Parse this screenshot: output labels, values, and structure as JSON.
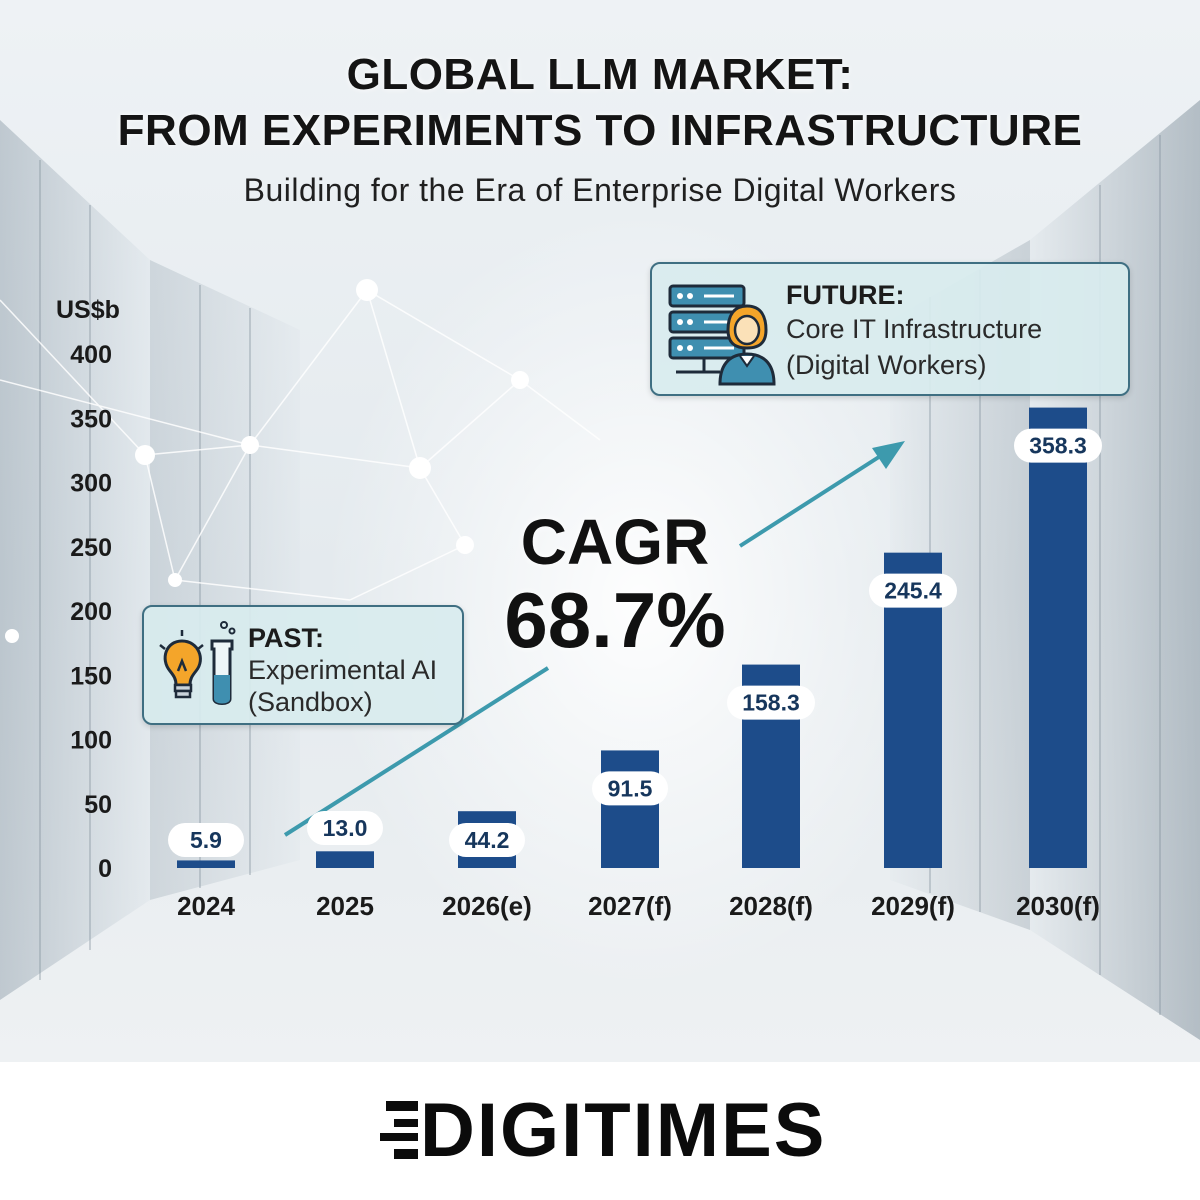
{
  "header": {
    "title_line1": "GLOBAL LLM MARKET:",
    "title_line2": "FROM EXPERIMENTS TO INFRASTRUCTURE",
    "subtitle": "Building for the Era of Enterprise Digital Workers"
  },
  "callouts": {
    "past": {
      "heading": "PAST:",
      "line1": "Experimental AI",
      "line2": "(Sandbox)",
      "icons": [
        "lightbulb-icon",
        "test-tube-icon"
      ]
    },
    "future": {
      "heading": "FUTURE:",
      "line1": "Core IT Infrastructure",
      "line2": "(Digital Workers)",
      "icons": [
        "server-stack-icon",
        "digital-worker-icon"
      ]
    }
  },
  "cagr": {
    "label": "CAGR",
    "value": "68.7%"
  },
  "chart_data": {
    "type": "bar",
    "title": "GLOBAL LLM MARKET: FROM EXPERIMENTS TO INFRASTRUCTURE",
    "subtitle": "Building for the Era of Enterprise Digital Workers",
    "ylabel": "US$b",
    "xlabel": "",
    "categories": [
      "2024",
      "2025",
      "2026(e)",
      "2027(f)",
      "2028(f)",
      "2029(f)",
      "2030(f)"
    ],
    "values": [
      5.9,
      13.0,
      44.2,
      91.5,
      158.3,
      245.4,
      358.3
    ],
    "value_labels": [
      "5.9",
      "13.0",
      "44.2",
      "91.5",
      "158.3",
      "245.4",
      "358.3"
    ],
    "ylim": [
      0,
      400
    ],
    "yticks": [
      "0",
      "50",
      "100",
      "150",
      "200",
      "250",
      "300",
      "350",
      "400"
    ],
    "ytick_values": [
      0,
      50,
      100,
      150,
      200,
      250,
      300,
      350,
      400
    ],
    "grid": false,
    "legend": "none",
    "bar_color": "#1d4c8a",
    "annotation": "CAGR 68.7%"
  },
  "footer": {
    "brand": "DIGITIMES"
  }
}
